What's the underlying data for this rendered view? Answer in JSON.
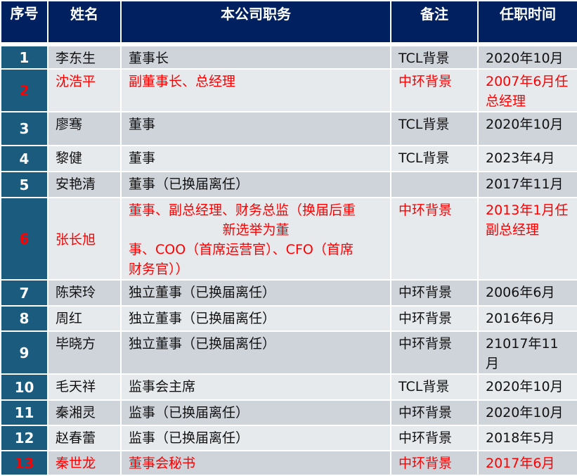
{
  "header": {
    "index": "序号",
    "name": "姓名",
    "position": "本公司职务",
    "note": "备注",
    "since": "任职时间"
  },
  "colors": {
    "header_bg": "#002060",
    "index_bg": "#1a5b7e",
    "row_dark": "#cfd3da",
    "row_light": "#e7eaed",
    "highlight_text": "#ff0000"
  },
  "rows": [
    {
      "index": "1",
      "name": "李东生",
      "position": [
        "董事长"
      ],
      "note": "TCL背景",
      "since": "2020年10月",
      "highlight": false
    },
    {
      "index": "2",
      "name": "沈浩平",
      "position": [
        "副董事长、总经理"
      ],
      "note": "中环背景",
      "since": "2007年6月任总经理",
      "highlight": true
    },
    {
      "index": "3",
      "name": "廖骞",
      "position": [
        "董事"
      ],
      "note": "TCL背景",
      "since": "2020年10月",
      "highlight": false
    },
    {
      "index": "4",
      "name": "黎健",
      "position": [
        "董事"
      ],
      "note": "TCL背景",
      "since": "2023年4月",
      "highlight": false
    },
    {
      "index": "5",
      "name": "安艳清",
      "position": [
        "董事（已换届离任）"
      ],
      "note": "",
      "since": "2017年11月",
      "highlight": false
    },
    {
      "index": "6",
      "name": "张长旭",
      "position": [
        "董事、副总经理、财务总监（换届后重",
        "新选举为董",
        "事、COO（首席运营官）、CFO（首席",
        "财务官））"
      ],
      "note": "中环背景",
      "since": "2013年1月任副总经理",
      "highlight": true
    },
    {
      "index": "7",
      "name": "陈荣玲",
      "position": [
        "独立董事（已换届离任）"
      ],
      "note": "中环背景",
      "since": "2006年6月",
      "highlight": false
    },
    {
      "index": "8",
      "name": "周红",
      "position": [
        "独立董事（已换届离任）"
      ],
      "note": "中环背景",
      "since": "2016年6月",
      "highlight": false
    },
    {
      "index": "9",
      "name": "毕晓方",
      "position": [
        "独立董事（已换届离任）"
      ],
      "note": "中环背景",
      "since": "21017年11月",
      "highlight": false
    },
    {
      "index": "10",
      "name": "毛天祥",
      "position": [
        "监事会主席"
      ],
      "note": "TCL背景",
      "since": "2020年10月",
      "highlight": false
    },
    {
      "index": "11",
      "name": "秦湘灵",
      "position": [
        "监事（已换届离任）"
      ],
      "note": "中环背景",
      "since": "2020年10月",
      "highlight": false
    },
    {
      "index": "12",
      "name": "赵春蕾",
      "position": [
        "监事（已换届离任）"
      ],
      "note": "中环背景",
      "since": "2018年5月",
      "highlight": false
    },
    {
      "index": "13",
      "name": "秦世龙",
      "position": [
        "董事会秘书"
      ],
      "note": "中环背景",
      "since": "2017年6月",
      "highlight": true
    }
  ]
}
